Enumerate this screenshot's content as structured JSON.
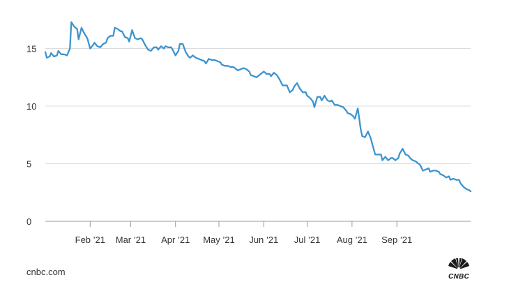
{
  "chart_data": {
    "type": "line",
    "title": "",
    "xlabel": "",
    "ylabel": "",
    "ylim": [
      0,
      18
    ],
    "yticks": [
      0,
      5,
      10,
      15
    ],
    "grid": true,
    "line_color": "#3d94cf",
    "x_start": "2021-01-01",
    "xticks": [
      {
        "label": "Feb ’21",
        "date": "2021-02-01"
      },
      {
        "label": "Mar ’21",
        "date": "2021-03-01"
      },
      {
        "label": "Apr ’21",
        "date": "2021-04-01"
      },
      {
        "label": "May ’21",
        "date": "2021-05-01"
      },
      {
        "label": "Jun ’21",
        "date": "2021-06-01"
      },
      {
        "label": "Jul ’21",
        "date": "2021-07-01"
      },
      {
        "label": "Aug ’21",
        "date": "2021-08-01"
      },
      {
        "label": "Sep ’21",
        "date": "2021-09-01"
      }
    ],
    "series": [
      {
        "points": [
          [
            "2021-01-01",
            14.7
          ],
          [
            "2021-01-02",
            14.2
          ],
          [
            "2021-01-04",
            14.3
          ],
          [
            "2021-01-05",
            14.6
          ],
          [
            "2021-01-07",
            14.3
          ],
          [
            "2021-01-09",
            14.4
          ],
          [
            "2021-01-10",
            14.8
          ],
          [
            "2021-01-12",
            14.5
          ],
          [
            "2021-01-14",
            14.5
          ],
          [
            "2021-01-16",
            14.4
          ],
          [
            "2021-01-18",
            15.0
          ],
          [
            "2021-01-19",
            17.3
          ],
          [
            "2021-01-21",
            16.9
          ],
          [
            "2021-01-23",
            16.7
          ],
          [
            "2021-01-24",
            15.8
          ],
          [
            "2021-01-26",
            16.8
          ],
          [
            "2021-01-28",
            16.3
          ],
          [
            "2021-01-30",
            15.9
          ],
          [
            "2021-02-01",
            15.0
          ],
          [
            "2021-02-03",
            15.3
          ],
          [
            "2021-02-04",
            15.5
          ],
          [
            "2021-02-06",
            15.2
          ],
          [
            "2021-02-08",
            15.1
          ],
          [
            "2021-02-10",
            15.4
          ],
          [
            "2021-02-12",
            15.5
          ],
          [
            "2021-02-13",
            15.9
          ],
          [
            "2021-02-15",
            16.1
          ],
          [
            "2021-02-17",
            16.1
          ],
          [
            "2021-02-18",
            16.8
          ],
          [
            "2021-02-20",
            16.7
          ],
          [
            "2021-02-22",
            16.5
          ],
          [
            "2021-02-23",
            16.5
          ],
          [
            "2021-02-25",
            16.0
          ],
          [
            "2021-02-27",
            15.9
          ],
          [
            "2021-02-28",
            15.6
          ],
          [
            "2021-03-02",
            16.6
          ],
          [
            "2021-03-04",
            15.9
          ],
          [
            "2021-03-06",
            15.8
          ],
          [
            "2021-03-08",
            15.9
          ],
          [
            "2021-03-09",
            15.8
          ],
          [
            "2021-03-11",
            15.3
          ],
          [
            "2021-03-13",
            14.9
          ],
          [
            "2021-03-15",
            14.8
          ],
          [
            "2021-03-17",
            15.1
          ],
          [
            "2021-03-19",
            15.1
          ],
          [
            "2021-03-20",
            14.9
          ],
          [
            "2021-03-22",
            15.2
          ],
          [
            "2021-03-24",
            15.0
          ],
          [
            "2021-03-25",
            15.2
          ],
          [
            "2021-03-27",
            15.1
          ],
          [
            "2021-03-29",
            15.1
          ],
          [
            "2021-03-30",
            14.9
          ],
          [
            "2021-04-01",
            14.4
          ],
          [
            "2021-04-03",
            14.8
          ],
          [
            "2021-04-04",
            15.4
          ],
          [
            "2021-04-06",
            15.4
          ],
          [
            "2021-04-08",
            14.7
          ],
          [
            "2021-04-10",
            14.3
          ],
          [
            "2021-04-11",
            14.2
          ],
          [
            "2021-04-13",
            14.4
          ],
          [
            "2021-04-15",
            14.2
          ],
          [
            "2021-04-17",
            14.1
          ],
          [
            "2021-04-19",
            14.0
          ],
          [
            "2021-04-21",
            13.9
          ],
          [
            "2021-04-22",
            13.7
          ],
          [
            "2021-04-24",
            14.1
          ],
          [
            "2021-04-26",
            14.0
          ],
          [
            "2021-04-28",
            14.0
          ],
          [
            "2021-04-30",
            13.9
          ],
          [
            "2021-05-02",
            13.8
          ],
          [
            "2021-05-03",
            13.6
          ],
          [
            "2021-05-05",
            13.5
          ],
          [
            "2021-05-07",
            13.5
          ],
          [
            "2021-05-09",
            13.4
          ],
          [
            "2021-05-11",
            13.4
          ],
          [
            "2021-05-13",
            13.2
          ],
          [
            "2021-05-14",
            13.1
          ],
          [
            "2021-05-16",
            13.2
          ],
          [
            "2021-05-18",
            13.3
          ],
          [
            "2021-05-20",
            13.2
          ],
          [
            "2021-05-22",
            13.0
          ],
          [
            "2021-05-23",
            12.7
          ],
          [
            "2021-05-25",
            12.6
          ],
          [
            "2021-05-27",
            12.5
          ],
          [
            "2021-05-28",
            12.6
          ],
          [
            "2021-05-30",
            12.8
          ],
          [
            "2021-06-01",
            13.0
          ],
          [
            "2021-06-03",
            12.8
          ],
          [
            "2021-06-05",
            12.8
          ],
          [
            "2021-06-06",
            12.6
          ],
          [
            "2021-06-08",
            12.9
          ],
          [
            "2021-06-10",
            12.7
          ],
          [
            "2021-06-12",
            12.3
          ],
          [
            "2021-06-14",
            11.8
          ],
          [
            "2021-06-15",
            11.8
          ],
          [
            "2021-06-17",
            11.8
          ],
          [
            "2021-06-19",
            11.2
          ],
          [
            "2021-06-21",
            11.4
          ],
          [
            "2021-06-22",
            11.7
          ],
          [
            "2021-06-24",
            12.0
          ],
          [
            "2021-06-26",
            11.5
          ],
          [
            "2021-06-28",
            11.2
          ],
          [
            "2021-06-30",
            11.2
          ],
          [
            "2021-07-01",
            10.9
          ],
          [
            "2021-07-03",
            10.7
          ],
          [
            "2021-07-05",
            10.4
          ],
          [
            "2021-07-06",
            9.9
          ],
          [
            "2021-07-08",
            10.8
          ],
          [
            "2021-07-10",
            10.8
          ],
          [
            "2021-07-11",
            10.5
          ],
          [
            "2021-07-13",
            10.9
          ],
          [
            "2021-07-15",
            10.5
          ],
          [
            "2021-07-17",
            10.4
          ],
          [
            "2021-07-18",
            10.5
          ],
          [
            "2021-07-20",
            10.1
          ],
          [
            "2021-07-22",
            10.1
          ],
          [
            "2021-07-24",
            10.0
          ],
          [
            "2021-07-26",
            9.9
          ],
          [
            "2021-07-28",
            9.6
          ],
          [
            "2021-07-29",
            9.4
          ],
          [
            "2021-07-31",
            9.3
          ],
          [
            "2021-08-02",
            9.1
          ],
          [
            "2021-08-03",
            8.9
          ],
          [
            "2021-08-05",
            9.8
          ],
          [
            "2021-08-07",
            8.0
          ],
          [
            "2021-08-08",
            7.4
          ],
          [
            "2021-08-10",
            7.3
          ],
          [
            "2021-08-12",
            7.8
          ],
          [
            "2021-08-14",
            7.2
          ],
          [
            "2021-08-15",
            6.7
          ],
          [
            "2021-08-17",
            5.8
          ],
          [
            "2021-08-19",
            5.8
          ],
          [
            "2021-08-21",
            5.8
          ],
          [
            "2021-08-22",
            5.3
          ],
          [
            "2021-08-24",
            5.6
          ],
          [
            "2021-08-26",
            5.3
          ],
          [
            "2021-08-28",
            5.5
          ],
          [
            "2021-08-29",
            5.5
          ],
          [
            "2021-08-31",
            5.3
          ],
          [
            "2021-09-02",
            5.5
          ],
          [
            "2021-09-03",
            5.9
          ],
          [
            "2021-09-05",
            6.3
          ],
          [
            "2021-09-07",
            5.8
          ],
          [
            "2021-09-09",
            5.7
          ],
          [
            "2021-09-10",
            5.5
          ],
          [
            "2021-09-12",
            5.3
          ],
          [
            "2021-09-14",
            5.2
          ],
          [
            "2021-09-16",
            5.0
          ],
          [
            "2021-09-17",
            4.9
          ],
          [
            "2021-09-19",
            4.4
          ],
          [
            "2021-09-21",
            4.5
          ],
          [
            "2021-09-23",
            4.6
          ],
          [
            "2021-09-24",
            4.3
          ],
          [
            "2021-09-26",
            4.4
          ],
          [
            "2021-09-28",
            4.4
          ],
          [
            "2021-09-30",
            4.3
          ],
          [
            "2021-10-01",
            4.1
          ],
          [
            "2021-10-03",
            4.0
          ],
          [
            "2021-10-05",
            3.8
          ],
          [
            "2021-10-07",
            3.9
          ],
          [
            "2021-10-08",
            3.6
          ],
          [
            "2021-10-10",
            3.7
          ],
          [
            "2021-10-12",
            3.6
          ],
          [
            "2021-10-14",
            3.6
          ],
          [
            "2021-10-15",
            3.3
          ],
          [
            "2021-10-17",
            3.0
          ],
          [
            "2021-10-19",
            2.8
          ],
          [
            "2021-10-21",
            2.7
          ],
          [
            "2021-10-22",
            2.6
          ]
        ]
      }
    ]
  },
  "source": "cnbc.com",
  "logo": {
    "text": "CNBC",
    "icon": "peacock-icon",
    "feather_colors": [
      "#ffffff",
      "#ffffff",
      "#ffffff",
      "#ffffff",
      "#ffffff",
      "#ffffff"
    ]
  }
}
